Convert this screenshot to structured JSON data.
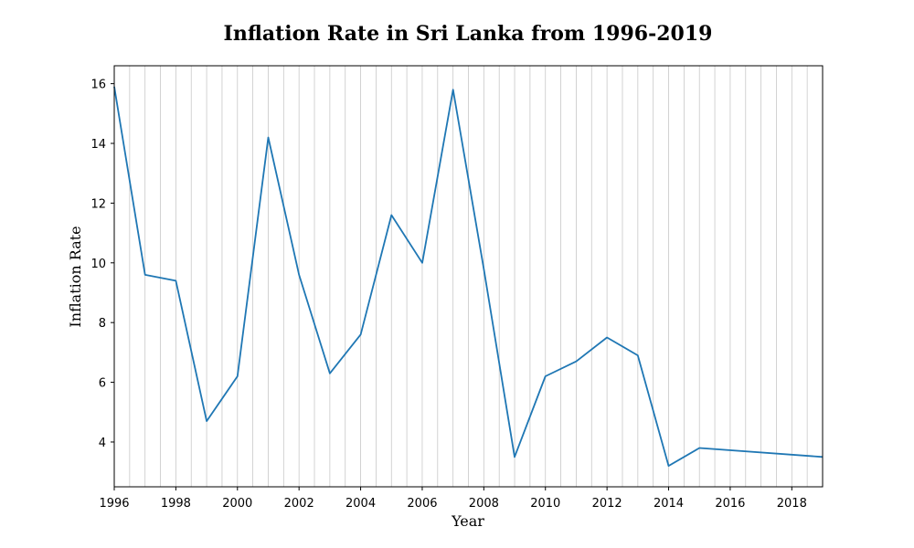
{
  "chart_data": {
    "type": "line",
    "title": "Inflation Rate in Sri Lanka from 1996-2019",
    "xlabel": "Year",
    "ylabel": "Inflation Rate",
    "x": [
      1996,
      1997,
      1998,
      1999,
      2000,
      2001,
      2002,
      2003,
      2004,
      2005,
      2006,
      2007,
      2008,
      2009,
      2010,
      2011,
      2012,
      2013,
      2014,
      2015,
      2019
    ],
    "series": [
      {
        "values": [
          15.9,
          9.6,
          9.4,
          4.7,
          6.2,
          14.2,
          9.6,
          6.3,
          7.6,
          11.6,
          10.0,
          15.8,
          9.8,
          3.5,
          6.2,
          6.7,
          7.5,
          6.9,
          3.2,
          3.8,
          3.5
        ]
      }
    ],
    "xlim": [
      1996,
      2019
    ],
    "ylim": [
      2.5,
      16.6
    ],
    "xticks": [
      1996,
      1998,
      2000,
      2002,
      2004,
      2006,
      2008,
      2010,
      2012,
      2014,
      2016,
      2018
    ],
    "yticks": [
      4,
      6,
      8,
      10,
      12,
      14,
      16
    ],
    "grid": "vertical-minor",
    "line_color": "#1f77b4",
    "grid_color": "#c8c8c8"
  }
}
